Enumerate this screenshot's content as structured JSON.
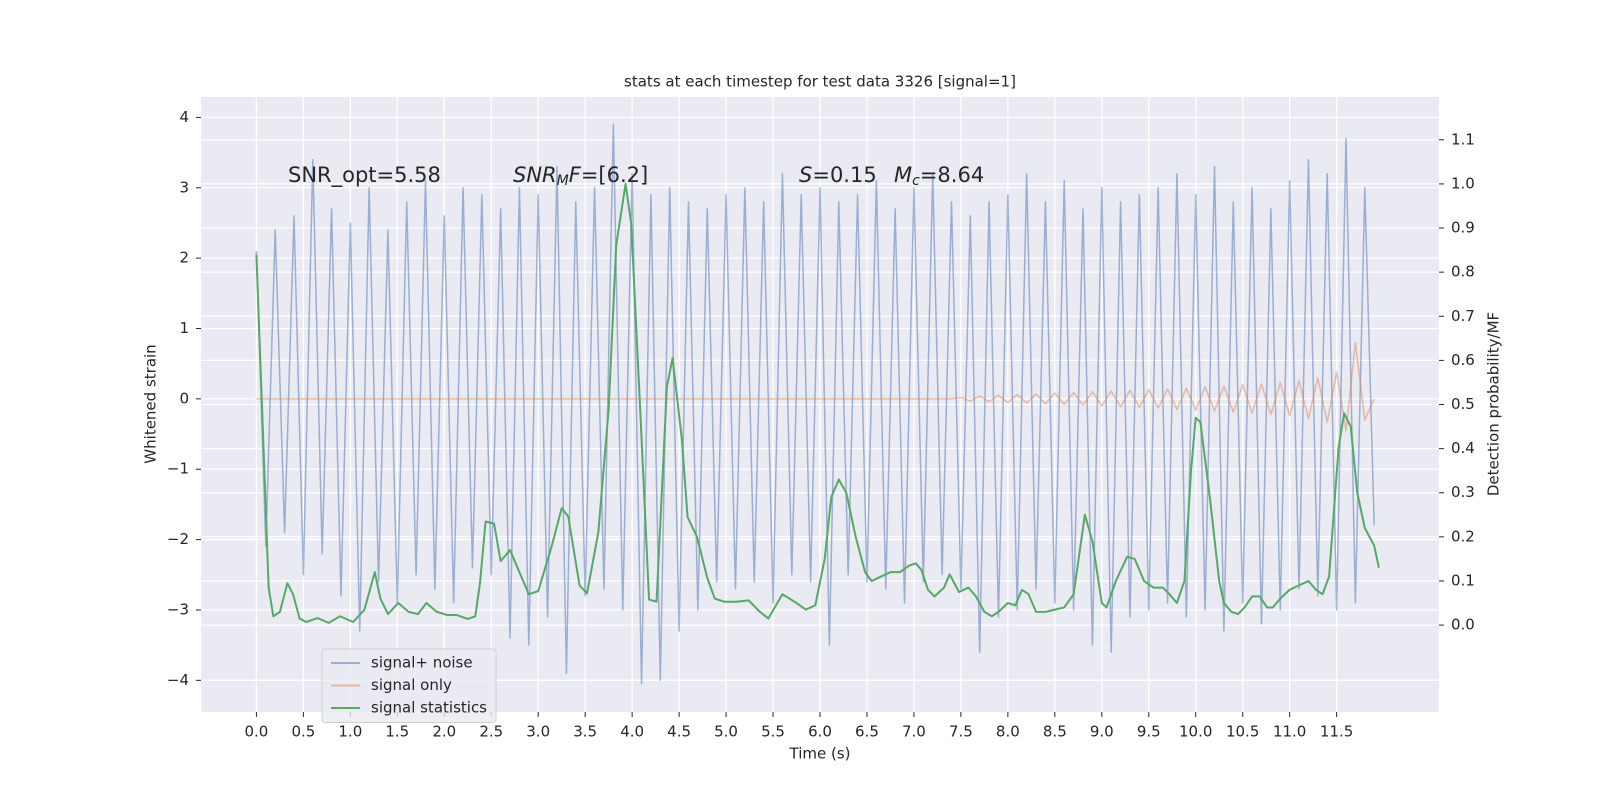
{
  "chart_data": {
    "type": "line",
    "title": "stats at each timestep for test data 3326 [signal=1]",
    "xlabel": "Time (s)",
    "ylabel": "Whitened strain",
    "y2label": "Detection probability/MF",
    "grid": true,
    "legend": "lower left",
    "xlim": [
      -0.59,
      12.59
    ],
    "ylim": [
      -4.45,
      4.29
    ],
    "y2lim": [
      -0.197,
      1.197
    ],
    "xticks": [
      {
        "value": 0,
        "label": "0.0"
      },
      0.5,
      {
        "value": 1,
        "label": "1.0"
      },
      1.5,
      {
        "value": 2,
        "label": "2.0"
      },
      2.5,
      {
        "value": 3,
        "label": "3.0"
      },
      3.5,
      {
        "value": 4,
        "label": "4.0"
      },
      4.5,
      {
        "value": 5,
        "label": "5.0"
      },
      5.5,
      {
        "value": 6,
        "label": "6.0"
      },
      6.5,
      {
        "value": 7,
        "label": "7.0"
      },
      7.5,
      {
        "value": 8,
        "label": "8.0"
      },
      8.5,
      {
        "value": 9,
        "label": "9.0"
      },
      9.5,
      {
        "value": 10,
        "label": "10.0"
      },
      10.5,
      {
        "value": 11,
        "label": "11.0"
      },
      11.5
    ],
    "yticks": [
      {
        "value": -4,
        "label": "−4"
      },
      {
        "value": -3,
        "label": "−3"
      },
      {
        "value": -2,
        "label": "−2"
      },
      {
        "value": -1,
        "label": "−1"
      },
      0,
      1,
      2,
      3,
      4
    ],
    "y2ticks": [
      {
        "value": 0,
        "label": "0.0"
      },
      0.1,
      0.2,
      0.3,
      0.4,
      0.5,
      0.6,
      0.7,
      0.8,
      0.9,
      {
        "value": 1,
        "label": "1.0"
      },
      1.1
    ],
    "annotations": [
      {
        "parts": [
          "SNR_opt=5.58"
        ]
      },
      {
        "parts": [
          "SNR",
          "M",
          "F",
          "=[6.2]"
        ]
      },
      {
        "parts": [
          "S",
          "=0.15"
        ]
      },
      {
        "parts": [
          "M",
          "c",
          "=8.64"
        ]
      }
    ],
    "x": [
      0.0,
      0.1,
      0.2,
      0.3,
      0.4,
      0.5,
      0.6,
      0.7,
      0.8,
      0.9,
      1.0,
      1.1,
      1.2,
      1.3,
      1.4,
      1.5,
      1.6,
      1.7,
      1.8,
      1.9,
      2.0,
      2.1,
      2.2,
      2.3,
      2.4,
      2.5,
      2.6,
      2.7,
      2.8,
      2.9,
      3.0,
      3.1,
      3.2,
      3.3,
      3.4,
      3.5,
      3.6,
      3.7,
      3.8,
      3.9,
      4.0,
      4.1,
      4.2,
      4.3,
      4.4,
      4.5,
      4.6,
      4.7,
      4.8,
      4.9,
      5.0,
      5.1,
      5.2,
      5.3,
      5.4,
      5.5,
      5.6,
      5.7,
      5.8,
      5.9,
      6.0,
      6.1,
      6.2,
      6.3,
      6.4,
      6.5,
      6.6,
      6.7,
      6.8,
      6.9,
      7.0,
      7.1,
      7.2,
      7.3,
      7.4,
      7.5,
      7.6,
      7.7,
      7.8,
      7.9,
      8.0,
      8.1,
      8.2,
      8.3,
      8.4,
      8.5,
      8.6,
      8.7,
      8.8,
      8.9,
      9.0,
      9.1,
      9.2,
      9.3,
      9.4,
      9.5,
      9.6,
      9.7,
      9.8,
      9.9,
      10.0,
      10.1,
      10.2,
      10.3,
      10.4,
      10.5,
      10.6,
      10.7,
      10.8,
      10.9,
      11.0,
      11.1,
      11.2,
      11.3,
      11.4,
      11.5,
      11.6,
      11.7,
      11.8,
      11.9
    ],
    "series": [
      {
        "name": "signal+ noise",
        "color": "#4c72b0",
        "values": [
          2.1,
          -2.1,
          2.4,
          -1.9,
          2.6,
          -2.5,
          3.4,
          -2.2,
          2.7,
          -2.8,
          2.5,
          -3.3,
          3.0,
          -2.6,
          2.4,
          -2.9,
          2.8,
          -2.5,
          3.1,
          -2.7,
          2.6,
          -2.9,
          3.0,
          -2.4,
          2.9,
          -2.5,
          2.7,
          -3.4,
          3.0,
          -3.5,
          2.9,
          -3.1,
          3.3,
          -3.9,
          2.8,
          -2.8,
          3.0,
          -2.7,
          3.9,
          -3.0,
          3.2,
          -4.05,
          2.9,
          -4.0,
          3.0,
          -3.3,
          2.8,
          -3.0,
          2.7,
          -2.6,
          2.9,
          -2.7,
          3.0,
          -2.6,
          2.8,
          -2.9,
          3.2,
          -2.5,
          2.9,
          -2.6,
          3.0,
          -3.5,
          2.8,
          -2.5,
          2.9,
          -2.6,
          3.1,
          -2.7,
          2.7,
          -2.9,
          3.0,
          -2.6,
          3.2,
          -2.5,
          2.8,
          -2.7,
          2.6,
          -3.6,
          2.8,
          -3.1,
          2.9,
          -3.0,
          3.2,
          -2.7,
          2.8,
          -2.9,
          3.1,
          -3.0,
          2.7,
          -3.5,
          3.0,
          -3.6,
          2.8,
          -3.1,
          2.9,
          -3.0,
          3.0,
          -2.9,
          3.2,
          -3.1,
          2.9,
          -3.0,
          3.3,
          -3.3,
          2.8,
          -2.9,
          3.0,
          -3.2,
          2.7,
          -3.0,
          3.1,
          -2.7,
          3.4,
          -2.8,
          3.2,
          -3.0,
          3.7,
          -2.9,
          3.0,
          -1.8
        ]
      },
      {
        "name": "signal only",
        "color": "#dd8452",
        "values": [
          0,
          0,
          0,
          0,
          0,
          0,
          0,
          0,
          0,
          0,
          0,
          0,
          0,
          0,
          0,
          0,
          0,
          0,
          0,
          0,
          0,
          0,
          0,
          0,
          0,
          0,
          0,
          0,
          0,
          0,
          0,
          0,
          0,
          0,
          0,
          0,
          0,
          0,
          0,
          0,
          0,
          0,
          0,
          0,
          0,
          0,
          0,
          0,
          0,
          0,
          0,
          0,
          0,
          0,
          0,
          0,
          0,
          0,
          0,
          0,
          0,
          0,
          0,
          0,
          0,
          0,
          0,
          0,
          0,
          0,
          0,
          0,
          0,
          0,
          0,
          0.02,
          -0.03,
          0.04,
          -0.04,
          0.05,
          -0.05,
          0.06,
          -0.06,
          0.07,
          -0.07,
          0.08,
          -0.08,
          0.09,
          -0.09,
          0.1,
          -0.1,
          0.11,
          -0.11,
          0.12,
          -0.12,
          0.13,
          -0.13,
          0.14,
          -0.15,
          0.15,
          -0.16,
          0.17,
          -0.17,
          0.18,
          -0.19,
          0.2,
          -0.2,
          0.21,
          -0.22,
          0.23,
          -0.24,
          0.26,
          -0.28,
          0.3,
          -0.33,
          0.38,
          -0.45,
          0.8,
          -0.3,
          0
        ]
      },
      {
        "name": "signal statistics",
        "color": "#55a868",
        "axis": "y2",
        "x": [
          0.0,
          0.13,
          0.18,
          0.25,
          0.33,
          0.39,
          0.46,
          0.53,
          0.65,
          0.77,
          0.89,
          1.03,
          1.15,
          1.26,
          1.32,
          1.4,
          1.51,
          1.62,
          1.72,
          1.81,
          1.92,
          2.03,
          2.13,
          2.25,
          2.33,
          2.38,
          2.44,
          2.53,
          2.6,
          2.7,
          2.78,
          2.9,
          3.0,
          3.14,
          3.25,
          3.32,
          3.44,
          3.52,
          3.64,
          3.75,
          3.83,
          3.93,
          3.99,
          4.09,
          4.18,
          4.26,
          4.37,
          4.43,
          4.53,
          4.59,
          4.69,
          4.8,
          4.88,
          4.98,
          5.11,
          5.24,
          5.36,
          5.45,
          5.6,
          5.75,
          5.85,
          5.95,
          6.05,
          6.12,
          6.2,
          6.28,
          6.38,
          6.48,
          6.55,
          6.65,
          6.75,
          6.85,
          6.95,
          7.02,
          7.08,
          7.15,
          7.22,
          7.32,
          7.38,
          7.48,
          7.58,
          7.66,
          7.75,
          7.83,
          7.9,
          8.0,
          8.08,
          8.15,
          8.22,
          8.3,
          8.4,
          8.5,
          8.6,
          8.7,
          8.82,
          8.9,
          9.0,
          9.05,
          9.15,
          9.27,
          9.35,
          9.45,
          9.55,
          9.65,
          9.72,
          9.8,
          9.88,
          9.95,
          10.0,
          10.05,
          10.15,
          10.25,
          10.3,
          10.38,
          10.45,
          10.52,
          10.6,
          10.68,
          10.76,
          10.82,
          10.9,
          11.0,
          11.1,
          11.2,
          11.28,
          11.35,
          11.42,
          11.52,
          11.58,
          11.65,
          11.72,
          11.8,
          11.9,
          11.95
        ],
        "values": [
          0.84,
          0.085,
          0.02,
          0.03,
          0.095,
          0.07,
          0.015,
          0.007,
          0.016,
          0.005,
          0.02,
          0.007,
          0.035,
          0.12,
          0.06,
          0.025,
          0.05,
          0.03,
          0.025,
          0.05,
          0.03,
          0.023,
          0.023,
          0.014,
          0.02,
          0.095,
          0.235,
          0.23,
          0.145,
          0.17,
          0.13,
          0.07,
          0.077,
          0.176,
          0.265,
          0.246,
          0.09,
          0.072,
          0.21,
          0.49,
          0.86,
          1.0,
          0.91,
          0.47,
          0.058,
          0.053,
          0.54,
          0.605,
          0.42,
          0.245,
          0.2,
          0.107,
          0.06,
          0.053,
          0.053,
          0.056,
          0.03,
          0.015,
          0.07,
          0.05,
          0.035,
          0.045,
          0.15,
          0.29,
          0.33,
          0.3,
          0.2,
          0.12,
          0.1,
          0.11,
          0.12,
          0.12,
          0.135,
          0.14,
          0.125,
          0.08,
          0.065,
          0.085,
          0.115,
          0.075,
          0.085,
          0.065,
          0.03,
          0.02,
          0.03,
          0.05,
          0.045,
          0.08,
          0.07,
          0.03,
          0.03,
          0.035,
          0.04,
          0.07,
          0.25,
          0.19,
          0.05,
          0.04,
          0.1,
          0.155,
          0.15,
          0.1,
          0.085,
          0.085,
          0.07,
          0.05,
          0.1,
          0.35,
          0.47,
          0.46,
          0.29,
          0.1,
          0.05,
          0.03,
          0.025,
          0.04,
          0.065,
          0.065,
          0.04,
          0.04,
          0.06,
          0.08,
          0.09,
          0.1,
          0.08,
          0.07,
          0.11,
          0.4,
          0.48,
          0.45,
          0.3,
          0.22,
          0.18,
          0.13
        ]
      }
    ]
  }
}
